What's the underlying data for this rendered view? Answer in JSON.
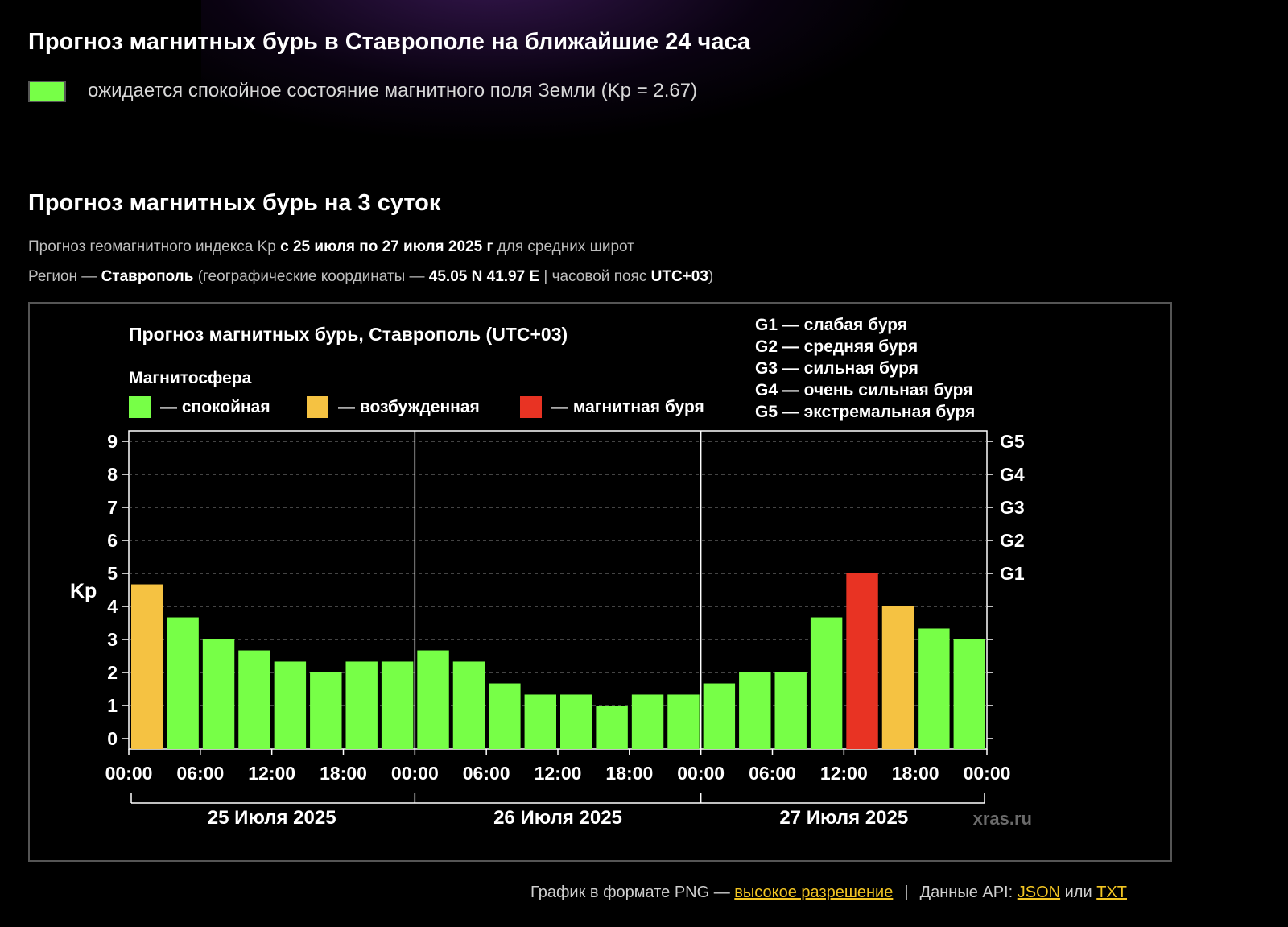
{
  "page": {
    "title_24h": "Прогноз магнитных бурь в Ставрополе на ближайшие 24 часа",
    "status_text": "ожидается спокойное состояние магнитного поля Земли (Kp = 2.67)",
    "status_color": "#77ff47",
    "title_3d": "Прогноз магнитных бурь на 3 суток",
    "info": {
      "l1_a": "Прогноз геомагнитного индекса Kp ",
      "l1_b": "с 25 июля по 27 июля 2025 г",
      "l1_c": " для средних широт",
      "l2_a": "Регион — ",
      "l2_b": "Ставрополь",
      "l2_c": " (географические координаты — ",
      "l2_d": "45.05 N 41.97 E",
      "l2_e": " | часовой пояс ",
      "l2_f": "UTC+03",
      "l2_g": ")"
    },
    "footer": {
      "png_text": "График в формате PNG — ",
      "png_link": "высокое разрешение",
      "sep": "|",
      "api_text": "Данные API: ",
      "json_link": "JSON",
      "or_text": " или ",
      "txt_link": "TXT"
    }
  },
  "chart_data": {
    "type": "bar",
    "title": "Прогноз магнитных бурь, Ставрополь (UTC+03)",
    "legend_title": "Магнитосфера",
    "legend": [
      {
        "label": "— спокойная",
        "color": "#77ff47"
      },
      {
        "label": "— возбужденная",
        "color": "#f5c242"
      },
      {
        "label": "— магнитная буря",
        "color": "#e83323"
      }
    ],
    "g_legend": [
      "G1 — слабая буря",
      "G2 — средняя буря",
      "G3 — сильная буря",
      "G4 — очень сильная буря",
      "G5 — экстремальная буря"
    ],
    "ylabel": "Kp",
    "ylim": [
      0,
      9
    ],
    "y_ticks": [
      "0",
      "1",
      "2",
      "3",
      "4",
      "5",
      "6",
      "7",
      "8",
      "9"
    ],
    "g_ticks": [
      {
        "label": "G1",
        "kp": 5
      },
      {
        "label": "G2",
        "kp": 6
      },
      {
        "label": "G3",
        "kp": 7
      },
      {
        "label": "G4",
        "kp": 8
      },
      {
        "label": "G5",
        "kp": 9
      }
    ],
    "x_tick_labels": [
      "00:00",
      "06:00",
      "12:00",
      "18:00",
      "00:00",
      "06:00",
      "12:00",
      "18:00",
      "00:00",
      "06:00",
      "12:00",
      "18:00",
      "00:00"
    ],
    "days": [
      "25 Июля 2025",
      "26 Июля 2025",
      "27 Июля 2025"
    ],
    "values": [
      4.67,
      3.67,
      3.0,
      2.67,
      2.33,
      2.0,
      2.33,
      2.33,
      2.67,
      2.33,
      1.67,
      1.33,
      1.33,
      1.0,
      1.33,
      1.33,
      1.67,
      2.0,
      2.0,
      3.67,
      5.0,
      4.0,
      3.33,
      3.0
    ],
    "colors": [
      "#f5c242",
      "#77ff47",
      "#77ff47",
      "#77ff47",
      "#77ff47",
      "#77ff47",
      "#77ff47",
      "#77ff47",
      "#77ff47",
      "#77ff47",
      "#77ff47",
      "#77ff47",
      "#77ff47",
      "#77ff47",
      "#77ff47",
      "#77ff47",
      "#77ff47",
      "#77ff47",
      "#77ff47",
      "#77ff47",
      "#e83323",
      "#f5c242",
      "#77ff47",
      "#77ff47"
    ],
    "grid": true,
    "watermark": "xras.ru"
  }
}
